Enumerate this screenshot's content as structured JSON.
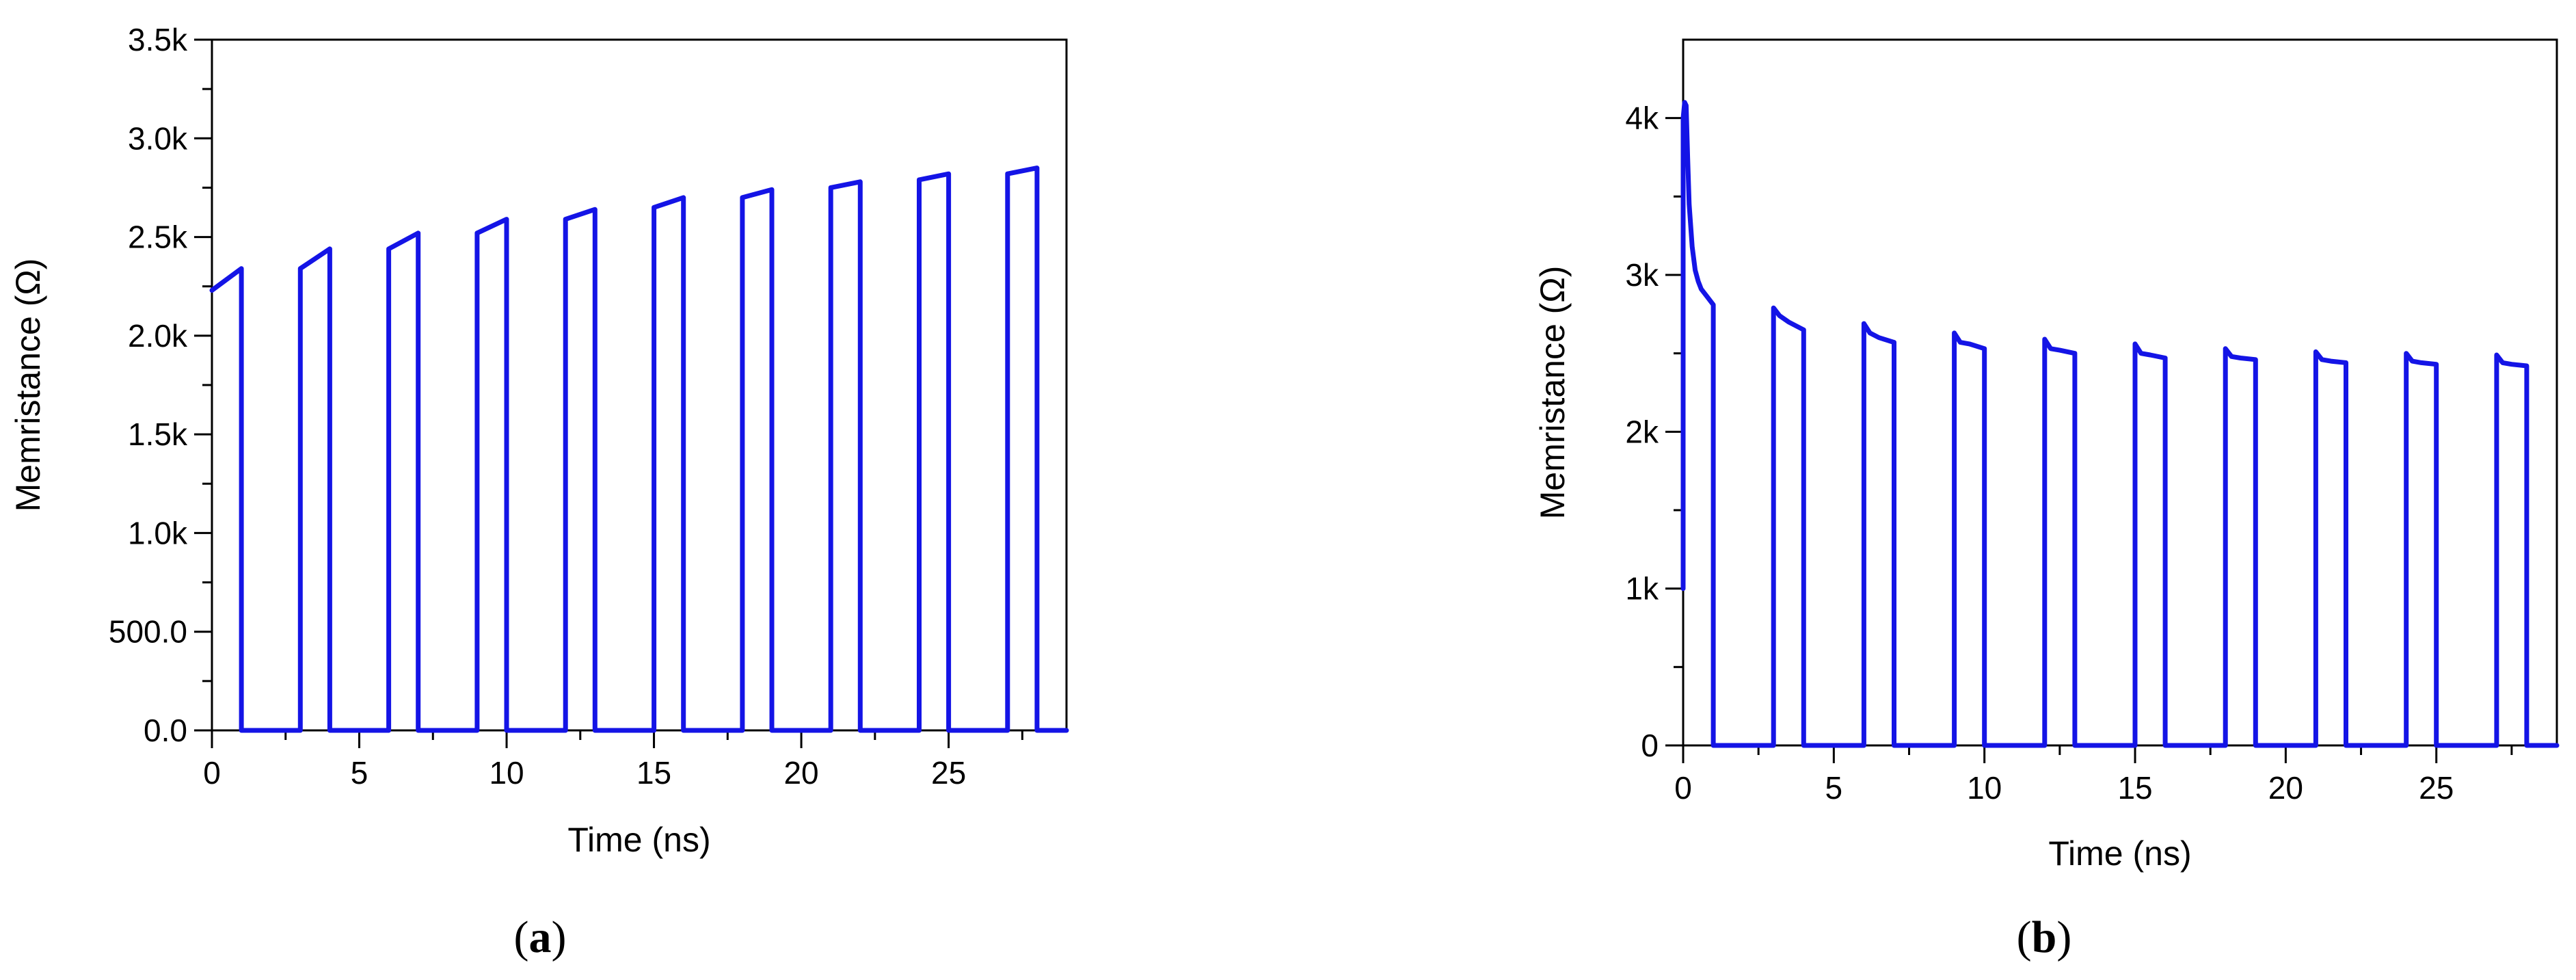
{
  "panels": [
    {
      "label_open": "(",
      "label_letter": "a",
      "label_close": ")"
    },
    {
      "label_open": "(",
      "label_letter": "b",
      "label_close": ")"
    }
  ],
  "chart_data": [
    {
      "type": "line",
      "xlabel": "Time (ns)",
      "ylabel": "Memristance (Ω)",
      "xlim": [
        0,
        29
      ],
      "ylim": [
        0,
        3500
      ],
      "x_ticks": [
        0,
        5,
        10,
        15,
        20,
        25
      ],
      "x_tick_labels": [
        "0",
        "5",
        "10",
        "15",
        "20",
        "25"
      ],
      "y_ticks": [
        0,
        500,
        1000,
        1500,
        2000,
        2500,
        3000,
        3500
      ],
      "y_tick_labels": [
        "0.0",
        "500.0",
        "1.0k",
        "1.5k",
        "2.0k",
        "2.5k",
        "3.0k",
        "3.5k"
      ],
      "grid": false,
      "color": "#1414e6",
      "series": [
        {
          "x": [
            0,
            1,
            1,
            3,
            3,
            4,
            4,
            6,
            6,
            7,
            7,
            9,
            9,
            10,
            10,
            12,
            12,
            13,
            13,
            15,
            15,
            16,
            16,
            18,
            18,
            19,
            19,
            21,
            21,
            22,
            22,
            24,
            24,
            25,
            25,
            27,
            27,
            28,
            28,
            29
          ],
          "y": [
            2230,
            2340,
            0,
            0,
            2340,
            2440,
            0,
            0,
            2440,
            2520,
            0,
            0,
            2520,
            2590,
            0,
            0,
            2590,
            2640,
            0,
            0,
            2650,
            2700,
            0,
            0,
            2700,
            2740,
            0,
            0,
            2750,
            2780,
            0,
            0,
            2790,
            2820,
            0,
            0,
            2820,
            2850,
            0,
            0
          ]
        }
      ]
    },
    {
      "type": "line",
      "xlabel": "Time (ns)",
      "ylabel": "Memristance (Ω)",
      "xlim": [
        0,
        29
      ],
      "ylim": [
        0,
        4500
      ],
      "x_ticks": [
        0,
        5,
        10,
        15,
        20,
        25
      ],
      "x_tick_labels": [
        "0",
        "5",
        "10",
        "15",
        "20",
        "25"
      ],
      "y_ticks": [
        0,
        1000,
        2000,
        3000,
        4000
      ],
      "y_tick_labels": [
        "0",
        "1k",
        "2k",
        "3k",
        "4k"
      ],
      "grid": false,
      "color": "#1414e6",
      "series": [
        {
          "x": [
            0,
            0,
            0.05,
            0.1,
            0.15,
            0.2,
            0.3,
            0.4,
            0.5,
            0.6,
            0.8,
            1,
            1,
            3,
            3,
            3.2,
            3.5,
            4,
            4,
            6,
            6,
            6.2,
            6.5,
            7,
            7,
            9,
            9,
            9.2,
            9.5,
            10,
            10,
            12,
            12,
            12.2,
            12.5,
            13,
            13,
            15,
            15,
            15.2,
            15.5,
            16,
            16,
            18,
            18,
            18.2,
            18.5,
            19,
            19,
            21,
            21,
            21.2,
            21.5,
            22,
            22,
            24,
            24,
            24.2,
            24.5,
            25,
            25,
            27,
            27,
            27.2,
            27.5,
            28,
            28,
            29
          ],
          "y": [
            1000,
            4000,
            4100,
            4080,
            3750,
            3450,
            3180,
            3030,
            2960,
            2910,
            2860,
            2810,
            0,
            0,
            2790,
            2740,
            2700,
            2650,
            0,
            0,
            2690,
            2630,
            2600,
            2570,
            0,
            0,
            2630,
            2570,
            2560,
            2530,
            0,
            0,
            2590,
            2530,
            2520,
            2500,
            0,
            0,
            2560,
            2500,
            2490,
            2470,
            0,
            0,
            2530,
            2480,
            2470,
            2460,
            0,
            0,
            2510,
            2460,
            2450,
            2440,
            0,
            0,
            2500,
            2450,
            2440,
            2430,
            0,
            0,
            2490,
            2440,
            2430,
            2420,
            0,
            0
          ]
        }
      ]
    }
  ]
}
